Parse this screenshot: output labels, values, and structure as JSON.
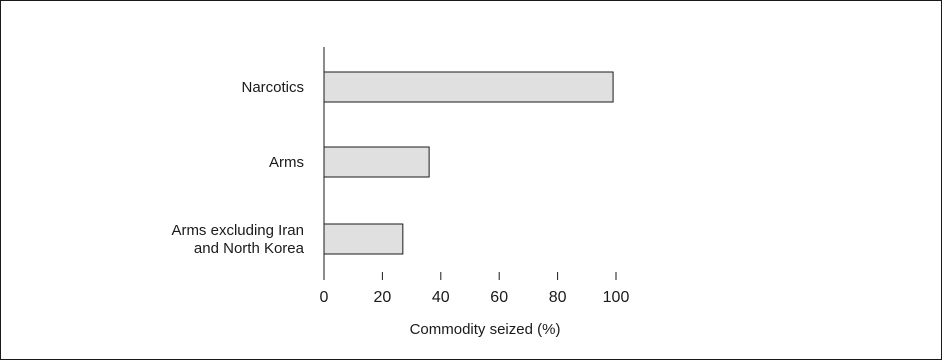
{
  "chart_data": {
    "type": "bar",
    "orientation": "horizontal",
    "categories": [
      [
        "Narcotics"
      ],
      [
        "Arms"
      ],
      [
        "Arms excluding Iran",
        "and North Korea"
      ]
    ],
    "values": [
      99,
      36,
      27
    ],
    "xlabel": "Commodity seized (%)",
    "ylabel": "",
    "xlim": [
      0,
      100
    ],
    "xticks": [
      0,
      20,
      40,
      60,
      80,
      100
    ],
    "grid": false,
    "legend": "none",
    "colors": {
      "bar_fill": "#e0e0e0",
      "bar_stroke": "#1a1a1a",
      "axis": "#1a1a1a"
    }
  }
}
